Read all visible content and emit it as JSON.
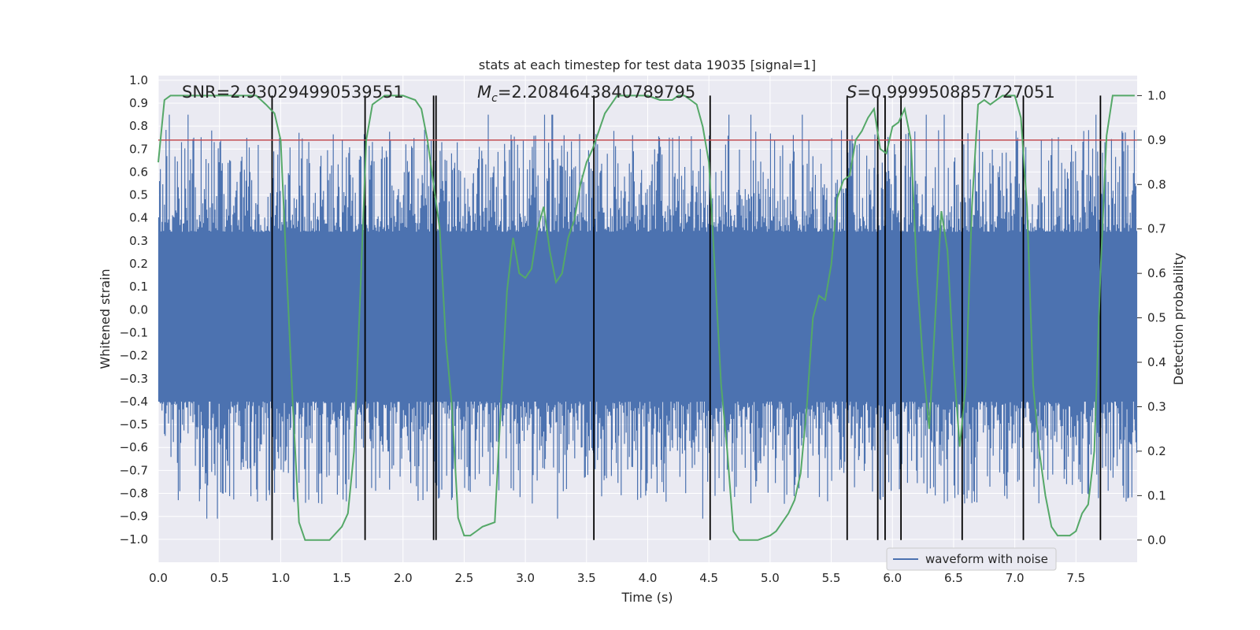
{
  "chart_data": {
    "type": "line",
    "title": "stats at each timestep for test data 19035 [signal=1]",
    "xlabel": "Time (s)",
    "ylabel": "Whitened strain",
    "y2label": "Detection probability",
    "xlim": [
      0.0,
      8.0
    ],
    "ylim": [
      -1.1,
      1.02
    ],
    "y2lim": [
      -0.05,
      1.045
    ],
    "xticks": [
      0.0,
      0.5,
      1.0,
      1.5,
      2.0,
      2.5,
      3.0,
      3.5,
      4.0,
      4.5,
      5.0,
      5.5,
      6.0,
      6.5,
      7.0,
      7.5
    ],
    "xtick_labels": [
      "0.0",
      "0.5",
      "1.0",
      "1.5",
      "2.0",
      "2.5",
      "3.0",
      "3.5",
      "4.0",
      "4.5",
      "5.0",
      "5.5",
      "6.0",
      "6.5",
      "7.0",
      "7.5"
    ],
    "yticks": [
      1.0,
      0.9,
      0.8,
      0.7,
      0.6,
      0.5,
      0.4,
      0.3,
      0.2,
      0.1,
      0.0,
      -0.1,
      -0.2,
      -0.3,
      -0.4,
      -0.5,
      -0.6,
      -0.7,
      -0.8,
      -0.9,
      -1.0
    ],
    "ytick_labels": [
      "1.0",
      "0.9",
      "0.8",
      "0.7",
      "0.6",
      "0.5",
      "0.4",
      "0.3",
      "0.2",
      "0.1",
      "0.0",
      "−0.1",
      "−0.2",
      "−0.3",
      "−0.4",
      "−0.5",
      "−0.6",
      "−0.7",
      "−0.8",
      "−0.9",
      "−1.0"
    ],
    "y2ticks": [
      1.0,
      0.9,
      0.8,
      0.7,
      0.6,
      0.5,
      0.4,
      0.3,
      0.2,
      0.1,
      0.0
    ],
    "y2tick_labels": [
      "1.0",
      "0.9",
      "0.8",
      "0.7",
      "0.6",
      "0.5",
      "0.4",
      "0.3",
      "0.2",
      "0.1",
      "0.0"
    ],
    "annotations": {
      "snr": "SNR=2.930294990539551",
      "mc_symbol": "M",
      "mc_sub": "c",
      "mc_value": "=2.2084643840789795",
      "s_symbol": "S",
      "s_value": "=0.9999508857727051"
    },
    "threshold": {
      "axis": "y2",
      "value": 0.9,
      "color": "#c44e52"
    },
    "vertical_markers": [
      0.93,
      1.69,
      2.25,
      2.27,
      3.56,
      4.51,
      5.63,
      5.88,
      5.94,
      6.07,
      6.57,
      7.07,
      7.7
    ],
    "waveform": {
      "name": "waveform with noise",
      "color": "#4c72b0",
      "points": 1200,
      "envelope_pos": 0.33,
      "envelope_neg": -0.4,
      "spike_min": -0.91,
      "spike_max": 0.85
    },
    "probability": {
      "name": "Detection probability",
      "color": "#55a868",
      "x": [
        0.0,
        0.05,
        0.1,
        0.2,
        0.3,
        0.5,
        0.8,
        0.88,
        0.95,
        1.0,
        1.05,
        1.1,
        1.15,
        1.2,
        1.3,
        1.4,
        1.5,
        1.55,
        1.6,
        1.65,
        1.7,
        1.75,
        1.8,
        1.85,
        1.9,
        2.0,
        2.1,
        2.15,
        2.2,
        2.25,
        2.3,
        2.35,
        2.4,
        2.45,
        2.5,
        2.55,
        2.6,
        2.65,
        2.7,
        2.75,
        2.8,
        2.85,
        2.9,
        2.95,
        3.0,
        3.05,
        3.1,
        3.15,
        3.2,
        3.25,
        3.3,
        3.35,
        3.4,
        3.45,
        3.5,
        3.55,
        3.6,
        3.65,
        3.7,
        3.75,
        3.8,
        3.9,
        4.0,
        4.1,
        4.15,
        4.2,
        4.25,
        4.3,
        4.35,
        4.4,
        4.45,
        4.5,
        4.55,
        4.6,
        4.65,
        4.7,
        4.75,
        4.8,
        4.85,
        4.9,
        5.0,
        5.05,
        5.1,
        5.15,
        5.2,
        5.25,
        5.3,
        5.35,
        5.4,
        5.45,
        5.5,
        5.55,
        5.6,
        5.65,
        5.7,
        5.75,
        5.8,
        5.85,
        5.9,
        5.95,
        6.0,
        6.05,
        6.1,
        6.15,
        6.2,
        6.25,
        6.3,
        6.35,
        6.4,
        6.45,
        6.5,
        6.55,
        6.6,
        6.65,
        6.7,
        6.75,
        6.8,
        6.85,
        6.9,
        7.0,
        7.05,
        7.1,
        7.15,
        7.2,
        7.25,
        7.3,
        7.35,
        7.4,
        7.45,
        7.5,
        7.55,
        7.6,
        7.65,
        7.7,
        7.75,
        7.8,
        7.9,
        7.98
      ],
      "values": [
        0.85,
        0.99,
        1.0,
        1.0,
        1.0,
        1.0,
        1.0,
        0.98,
        0.96,
        0.9,
        0.6,
        0.3,
        0.04,
        0.0,
        0.0,
        0.0,
        0.03,
        0.06,
        0.2,
        0.55,
        0.9,
        0.98,
        0.99,
        1.0,
        1.0,
        1.0,
        0.99,
        0.97,
        0.9,
        0.8,
        0.7,
        0.45,
        0.3,
        0.05,
        0.01,
        0.01,
        0.02,
        0.03,
        0.035,
        0.04,
        0.3,
        0.56,
        0.68,
        0.6,
        0.59,
        0.61,
        0.7,
        0.75,
        0.65,
        0.58,
        0.6,
        0.68,
        0.72,
        0.8,
        0.85,
        0.88,
        0.92,
        0.96,
        0.98,
        1.0,
        1.0,
        1.0,
        1.0,
        0.99,
        0.99,
        0.99,
        1.0,
        1.0,
        0.99,
        0.98,
        0.93,
        0.85,
        0.6,
        0.35,
        0.2,
        0.02,
        0.0,
        0.0,
        0.0,
        0.0,
        0.01,
        0.02,
        0.04,
        0.06,
        0.09,
        0.15,
        0.3,
        0.5,
        0.55,
        0.54,
        0.62,
        0.77,
        0.81,
        0.82,
        0.9,
        0.92,
        0.95,
        0.97,
        0.88,
        0.87,
        0.93,
        0.94,
        0.97,
        0.9,
        0.6,
        0.4,
        0.25,
        0.5,
        0.74,
        0.65,
        0.4,
        0.21,
        0.35,
        0.75,
        0.98,
        0.99,
        0.98,
        0.99,
        1.0,
        1.0,
        0.95,
        0.75,
        0.35,
        0.2,
        0.1,
        0.03,
        0.01,
        0.01,
        0.01,
        0.02,
        0.06,
        0.08,
        0.2,
        0.6,
        0.91,
        1.0,
        1.0,
        1.0
      ]
    },
    "legend": {
      "position": "lower-right",
      "entries": [
        "waveform with noise"
      ]
    }
  }
}
